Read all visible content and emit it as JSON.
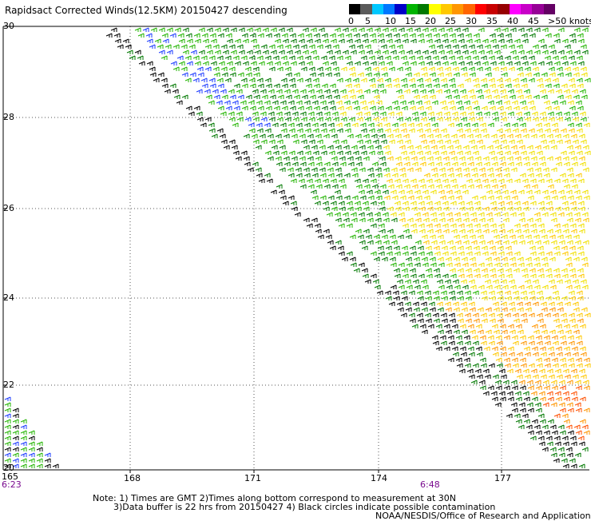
{
  "title": "Rapidsact Corrected Winds(12.5KM) 20150427 descending",
  "legend": {
    "labels": [
      "0",
      "5",
      "10",
      "15",
      "20",
      "25",
      "30",
      "35",
      "40",
      "45",
      ">50 knots"
    ],
    "colors": [
      "#000000",
      "#5a5a5a",
      "#00c8ff",
      "#0078ff",
      "#0000c8",
      "#00b400",
      "#007800",
      "#ffff00",
      "#ffc800",
      "#ff9600",
      "#ff6400",
      "#ff0000",
      "#c80000",
      "#960000",
      "#ff00ff",
      "#c800c8",
      "#960096",
      "#640064"
    ]
  },
  "axes": {
    "lat_labels": [
      "30",
      "28",
      "26",
      "24",
      "22",
      "20"
    ],
    "lon_labels": [
      "165",
      "168",
      "171",
      "174",
      "177"
    ]
  },
  "times": {
    "left": "6:23",
    "mid": "6:48"
  },
  "notes": {
    "line1": "Note: 1) Times are GMT 2)Times along bottom correspond to measurement at 30N",
    "line2": "3)Data buffer is 22 hrs from 20150427 4) Black circles indicate possible contamination",
    "credit": "NOAA/NESDIS/Office of Research and Applications"
  }
}
